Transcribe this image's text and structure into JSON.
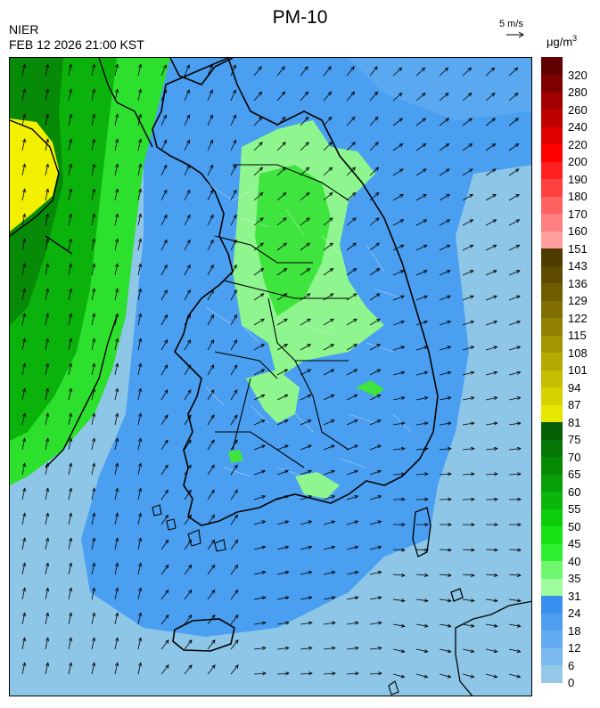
{
  "header": {
    "title": "PM-10",
    "agency": "NIER",
    "timestamp": "FEB 12 2026 21:00 KST",
    "wind_scale_label": "5 m/s",
    "unit_base": "μg/m",
    "unit_exp": "3"
  },
  "legend": {
    "levels": [
      {
        "label": "0",
        "color": "#93c9e6"
      },
      {
        "label": "6",
        "color": "#7ab8ee"
      },
      {
        "label": "12",
        "color": "#64acf0"
      },
      {
        "label": "18",
        "color": "#4e9ff0"
      },
      {
        "label": "24",
        "color": "#3890f0"
      },
      {
        "label": "31",
        "color": "#9dfd9d"
      },
      {
        "label": "35",
        "color": "#6ff86f"
      },
      {
        "label": "40",
        "color": "#30ef30"
      },
      {
        "label": "45",
        "color": "#16e316"
      },
      {
        "label": "50",
        "color": "#0ccc0c"
      },
      {
        "label": "55",
        "color": "#09b609"
      },
      {
        "label": "60",
        "color": "#079f07"
      },
      {
        "label": "65",
        "color": "#068a06"
      },
      {
        "label": "70",
        "color": "#057505"
      },
      {
        "label": "75",
        "color": "#046004"
      },
      {
        "label": "81",
        "color": "#e6e600"
      },
      {
        "label": "87",
        "color": "#d6d200"
      },
      {
        "label": "94",
        "color": "#c4bd00"
      },
      {
        "label": "101",
        "color": "#b3a900"
      },
      {
        "label": "108",
        "color": "#a19500"
      },
      {
        "label": "115",
        "color": "#908200"
      },
      {
        "label": "122",
        "color": "#7f6f00"
      },
      {
        "label": "129",
        "color": "#6e5d00"
      },
      {
        "label": "136",
        "color": "#5d4b00"
      },
      {
        "label": "143",
        "color": "#4d3b00"
      },
      {
        "label": "151",
        "color": "#ff9e9e"
      },
      {
        "label": "160",
        "color": "#ff8080"
      },
      {
        "label": "170",
        "color": "#ff6060"
      },
      {
        "label": "180",
        "color": "#ff4040"
      },
      {
        "label": "190",
        "color": "#ff2020"
      },
      {
        "label": "200",
        "color": "#ff0000"
      },
      {
        "label": "220",
        "color": "#e00000"
      },
      {
        "label": "240",
        "color": "#c00000"
      },
      {
        "label": "260",
        "color": "#a00000"
      },
      {
        "label": "280",
        "color": "#800000"
      },
      {
        "label": "320",
        "color": "#600000"
      }
    ]
  }
}
